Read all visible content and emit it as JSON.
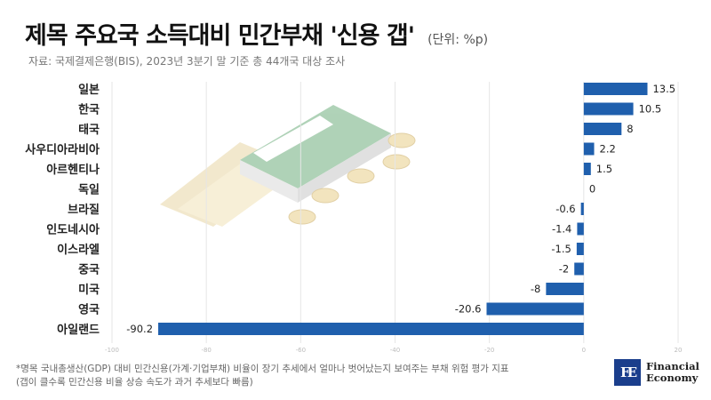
{
  "header": {
    "title": "제목 주요국 소득대비 민간부채 '신용 갭'",
    "unit": "(단위: %p)",
    "source": "자료: 국제결제은행(BIS), 2023년 3분기 말 기준 총 44개국 대상 조사"
  },
  "footnote": {
    "line1": "*명목 국내총생산(GDP) 대비 민간신용(가계·기업부채) 비율이 장기 추세에서 얼마나 벗어났는지 보여주는 부채 위험 평가 지표",
    "line2": "(갭이 클수록 민간신용 비율 상승 속도가 과거 추세보다 빠름)"
  },
  "logo": {
    "mark": "FE",
    "line1": "Financial",
    "line2": "Economy"
  },
  "colors": {
    "bar": "#1f5fad",
    "grid": "#e6e6e6",
    "label": "#222222"
  },
  "chart_data": {
    "type": "bar",
    "orientation": "horizontal",
    "title": "제목 주요국 소득대비 민간부채 '신용 갭'",
    "unit": "(단위: %p)",
    "categories": [
      "일본",
      "한국",
      "태국",
      "사우디아라비아",
      "아르헨티나",
      "독일",
      "브라질",
      "인도네시아",
      "이스라엘",
      "중국",
      "미국",
      "영국",
      "아일랜드"
    ],
    "values": [
      13.5,
      10.5,
      8,
      2.2,
      1.5,
      0,
      -0.6,
      -1.4,
      -1.5,
      -2,
      -8,
      -20.6,
      -90.2
    ],
    "value_labels": [
      "13.5",
      "10.5",
      "8",
      "2.2",
      "1.5",
      "0",
      "-0.6",
      "-1.4",
      "-1.5",
      "-2",
      "-8",
      "-20.6",
      "-90.2"
    ],
    "xlim": [
      -100,
      20
    ],
    "xticks": [
      -100,
      -80,
      -60,
      -40,
      -20,
      0,
      20
    ],
    "grid": true
  }
}
